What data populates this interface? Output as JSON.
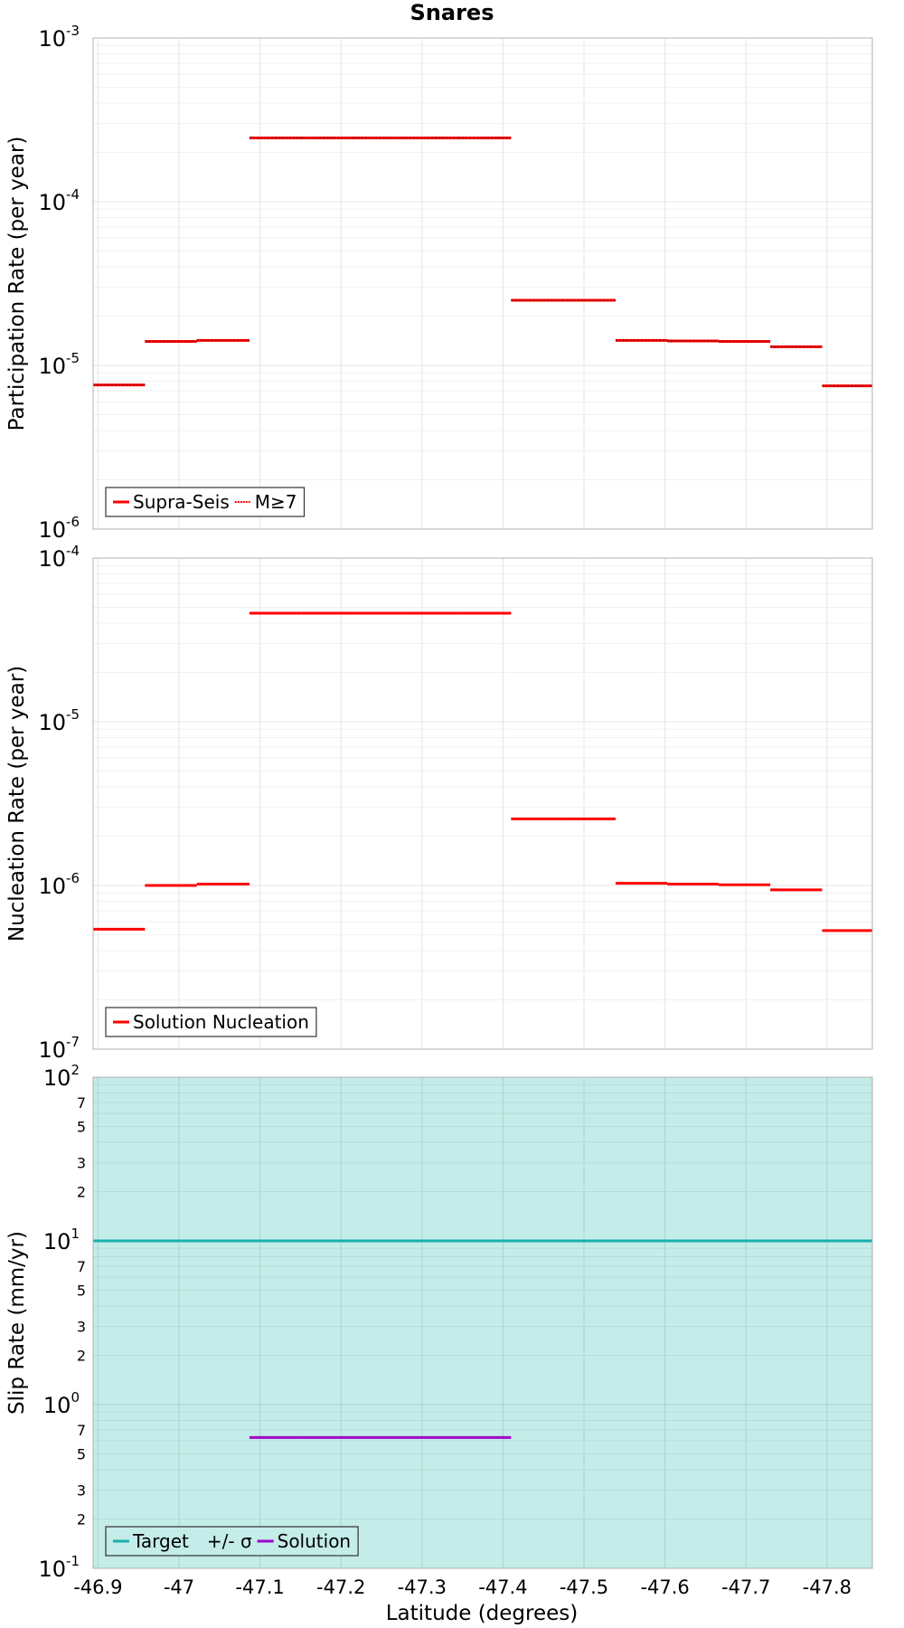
{
  "title": "Snares",
  "xlabel": "Latitude (degrees)",
  "colors": {
    "supra": "#ff0000",
    "target": "#1aafaf",
    "band": "#c4ece8",
    "solution": "#a000c8",
    "grid": "#e4e4e4"
  },
  "chart_data": [
    {
      "type": "line",
      "scale": "log",
      "ylabel": "Participation Rate (per year)",
      "xlim": [
        -46.894,
        -47.856
      ],
      "ylim": [
        1e-06,
        0.001
      ],
      "x_ticks": [
        -46.9,
        -47,
        -47.1,
        -47.2,
        -47.3,
        -47.4,
        -47.5,
        -47.6,
        -47.7,
        -47.8
      ],
      "x_tick_labels": [
        "-46.9",
        "-47",
        "-47.1",
        "-47.2",
        "-47.3",
        "-47.4",
        "-47.5",
        "-47.6",
        "-47.7",
        "-47.8"
      ],
      "y_ticks": [
        {
          "base": "10",
          "exp": "-6",
          "value": 1e-06
        },
        {
          "base": "10",
          "exp": "-5",
          "value": 1e-05
        },
        {
          "base": "10",
          "exp": "-4",
          "value": 0.0001
        },
        {
          "base": "10",
          "exp": "-3",
          "value": 0.001
        }
      ],
      "legend": [
        {
          "label": "Supra-Seis",
          "style": "solid",
          "color": "#ff0000"
        },
        {
          "label": "M≥7",
          "style": "dotted",
          "color": "#ff0000"
        }
      ],
      "series": [
        {
          "name": "Supra-Seis",
          "style": "solid",
          "segments": [
            [
              -46.894,
              -46.958,
              7.6e-06
            ],
            [
              -46.958,
              -47.022,
              1.4e-05
            ],
            [
              -47.022,
              -47.087,
              1.42e-05
            ],
            [
              -47.087,
              -47.151,
              0.000245
            ],
            [
              -47.151,
              -47.216,
              0.000245
            ],
            [
              -47.216,
              -47.28,
              0.000245
            ],
            [
              -47.28,
              -47.345,
              0.000245
            ],
            [
              -47.345,
              -47.41,
              0.000245
            ],
            [
              -47.41,
              -47.474,
              2.5e-05
            ],
            [
              -47.474,
              -47.539,
              2.5e-05
            ],
            [
              -47.539,
              -47.603,
              1.42e-05
            ],
            [
              -47.603,
              -47.666,
              1.41e-05
            ],
            [
              -47.666,
              -47.73,
              1.4e-05
            ],
            [
              -47.73,
              -47.794,
              1.3e-05
            ],
            [
              -47.794,
              -47.856,
              7.5e-06
            ]
          ]
        },
        {
          "name": "M≥7",
          "style": "dotted",
          "segments": [
            [
              -46.894,
              -46.958,
              7.6e-06
            ],
            [
              -46.958,
              -47.022,
              1.4e-05
            ],
            [
              -47.022,
              -47.087,
              1.42e-05
            ],
            [
              -47.087,
              -47.151,
              0.000245
            ],
            [
              -47.151,
              -47.216,
              0.000245
            ],
            [
              -47.216,
              -47.28,
              0.000245
            ],
            [
              -47.28,
              -47.345,
              0.000245
            ],
            [
              -47.345,
              -47.41,
              0.000245
            ],
            [
              -47.41,
              -47.474,
              2.5e-05
            ],
            [
              -47.474,
              -47.539,
              2.5e-05
            ],
            [
              -47.539,
              -47.603,
              1.42e-05
            ],
            [
              -47.603,
              -47.666,
              1.41e-05
            ],
            [
              -47.666,
              -47.73,
              1.4e-05
            ],
            [
              -47.73,
              -47.794,
              1.3e-05
            ],
            [
              -47.794,
              -47.856,
              7.5e-06
            ]
          ]
        }
      ]
    },
    {
      "type": "line",
      "scale": "log",
      "ylabel": "Nucleation Rate (per year)",
      "xlim": [
        -46.894,
        -47.856
      ],
      "ylim": [
        1e-07,
        0.0001
      ],
      "x_ticks": [
        -46.9,
        -47,
        -47.1,
        -47.2,
        -47.3,
        -47.4,
        -47.5,
        -47.6,
        -47.7,
        -47.8
      ],
      "y_ticks": [
        {
          "base": "10",
          "exp": "-7",
          "value": 1e-07
        },
        {
          "base": "10",
          "exp": "-6",
          "value": 1e-06
        },
        {
          "base": "10",
          "exp": "-5",
          "value": 1e-05
        },
        {
          "base": "10",
          "exp": "-4",
          "value": 0.0001
        }
      ],
      "legend": [
        {
          "label": "Solution Nucleation",
          "style": "solid",
          "color": "#ff0000"
        }
      ],
      "series": [
        {
          "name": "Solution Nucleation",
          "style": "solid",
          "segments": [
            [
              -46.894,
              -46.958,
              5.4e-07
            ],
            [
              -46.958,
              -47.022,
              1e-06
            ],
            [
              -47.022,
              -47.087,
              1.02e-06
            ],
            [
              -47.087,
              -47.151,
              4.6e-05
            ],
            [
              -47.151,
              -47.216,
              4.6e-05
            ],
            [
              -47.216,
              -47.28,
              4.6e-05
            ],
            [
              -47.28,
              -47.345,
              4.6e-05
            ],
            [
              -47.345,
              -47.41,
              4.6e-05
            ],
            [
              -47.41,
              -47.474,
              2.55e-06
            ],
            [
              -47.474,
              -47.539,
              2.55e-06
            ],
            [
              -47.539,
              -47.603,
              1.03e-06
            ],
            [
              -47.603,
              -47.666,
              1.02e-06
            ],
            [
              -47.666,
              -47.73,
              1.01e-06
            ],
            [
              -47.73,
              -47.794,
              9.4e-07
            ],
            [
              -47.794,
              -47.856,
              5.3e-07
            ]
          ]
        }
      ]
    },
    {
      "type": "line",
      "scale": "log",
      "ylabel": "Slip Rate (mm/yr)",
      "xlim": [
        -46.894,
        -47.856
      ],
      "ylim": [
        0.1,
        100
      ],
      "x_ticks": [
        -46.9,
        -47,
        -47.1,
        -47.2,
        -47.3,
        -47.4,
        -47.5,
        -47.6,
        -47.7,
        -47.8
      ],
      "y_ticks": [
        {
          "base": "10",
          "exp": "-1",
          "value": 0.1
        },
        {
          "base": "10",
          "exp": "0",
          "value": 1
        },
        {
          "base": "10",
          "exp": "1",
          "value": 10
        },
        {
          "base": "10",
          "exp": "2",
          "value": 100
        }
      ],
      "y_minor_labels": [
        {
          "label": "2",
          "value": 0.2
        },
        {
          "label": "3",
          "value": 0.3
        },
        {
          "label": "5",
          "value": 0.5
        },
        {
          "label": "7",
          "value": 0.7
        },
        {
          "label": "2",
          "value": 2
        },
        {
          "label": "3",
          "value": 3
        },
        {
          "label": "5",
          "value": 5
        },
        {
          "label": "7",
          "value": 7
        },
        {
          "label": "2",
          "value": 20
        },
        {
          "label": "3",
          "value": 30
        },
        {
          "label": "5",
          "value": 50
        },
        {
          "label": "7",
          "value": 70
        }
      ],
      "band": {
        "name": "+/- σ",
        "low": 0.1,
        "high": 100
      },
      "legend": [
        {
          "label": "Target",
          "style": "solid",
          "color": "#1aafaf"
        },
        {
          "label": "+/- σ",
          "style": "dot",
          "color": "#c4ece8"
        },
        {
          "label": "Solution",
          "style": "solid",
          "color": "#a000c8"
        }
      ],
      "series": [
        {
          "name": "Target",
          "style": "solid",
          "segments": [
            [
              -46.894,
              -47.856,
              10
            ]
          ]
        },
        {
          "name": "Solution",
          "style": "solid",
          "segments": [
            [
              -47.087,
              -47.151,
              0.63
            ],
            [
              -47.151,
              -47.216,
              0.63
            ],
            [
              -47.216,
              -47.28,
              0.63
            ],
            [
              -47.28,
              -47.345,
              0.63
            ],
            [
              -47.345,
              -47.41,
              0.63
            ]
          ]
        }
      ]
    }
  ]
}
